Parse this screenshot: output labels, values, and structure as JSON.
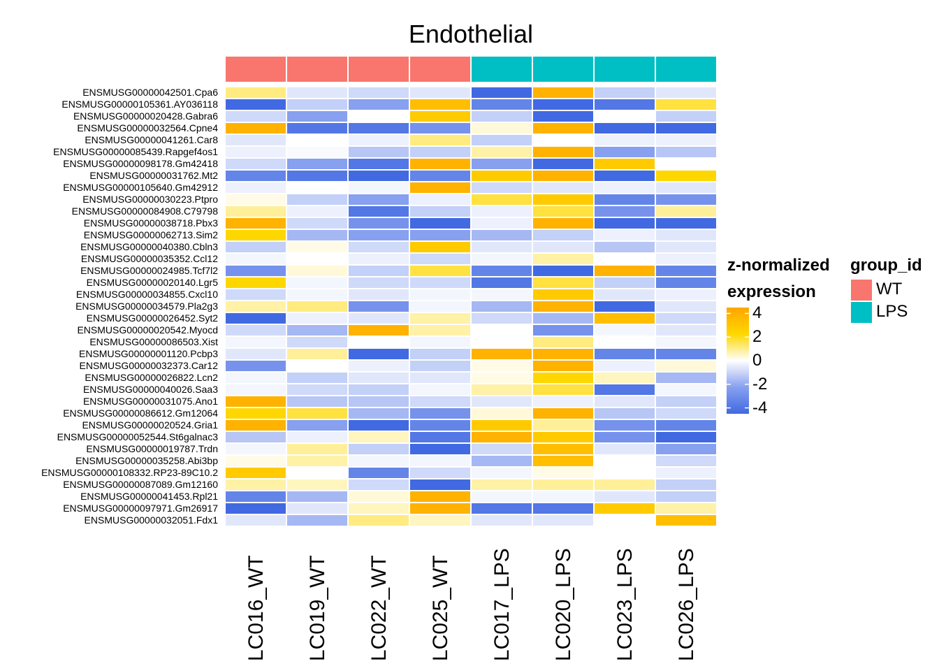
{
  "title": "Endothelial",
  "chart_data": {
    "type": "heatmap",
    "title": "Endothelial",
    "samples": [
      "LC016_WT",
      "LC019_WT",
      "LC022_WT",
      "LC025_WT",
      "LC017_LPS",
      "LC020_LPS",
      "LC023_LPS",
      "LC026_LPS"
    ],
    "sample_groups": [
      "WT",
      "WT",
      "WT",
      "WT",
      "LPS",
      "LPS",
      "LPS",
      "LPS"
    ],
    "genes": [
      "ENSMUSG00000042501.Cpa6",
      "ENSMUSG00000105361.AY036118",
      "ENSMUSG00000020428.Gabra6",
      "ENSMUSG00000032564.Cpne4",
      "ENSMUSG00000041261.Car8",
      "ENSMUSG00000085439.Rapgef4os1",
      "ENSMUSG00000098178.Gm42418",
      "ENSMUSG00000031762.Mt2",
      "ENSMUSG00000105640.Gm42912",
      "ENSMUSG00000030223.Ptpro",
      "ENSMUSG00000084908.C79798",
      "ENSMUSG00000038718.Pbx3",
      "ENSMUSG00000062713.Sim2",
      "ENSMUSG00000040380.Cbln3",
      "ENSMUSG00000035352.Ccl12",
      "ENSMUSG00000024985.Tcf7l2",
      "ENSMUSG00000020140.Lgr5",
      "ENSMUSG00000034855.Cxcl10",
      "ENSMUSG00000034579.Pla2g3",
      "ENSMUSG00000026452.Syt2",
      "ENSMUSG00000020542.Myocd",
      "ENSMUSG00000086503.Xist",
      "ENSMUSG00000001120.Pcbp3",
      "ENSMUSG00000032373.Car12",
      "ENSMUSG00000026822.Lcn2",
      "ENSMUSG00000040026.Saa3",
      "ENSMUSG00000031075.Ano1",
      "ENSMUSG00000086612.Gm12064",
      "ENSMUSG00000020524.Gria1",
      "ENSMUSG00000052544.St6galnac3",
      "ENSMUSG00000019787.Trdn",
      "ENSMUSG00000035258.Abi3bp",
      "ENSMUSG00000108332.RP23-89C10.2",
      "ENSMUSG00000087089.Gm12160",
      "ENSMUSG00000041453.Rpl21",
      "ENSMUSG00000097971.Gm26917",
      "ENSMUSG00000032051.Fdx1"
    ],
    "values": [
      [
        1,
        -0.5,
        -0.8,
        -0.5,
        -4,
        3.5,
        -1,
        -0.5
      ],
      [
        -4,
        -1,
        -2,
        3,
        -3,
        -4,
        -3.5,
        1.5
      ],
      [
        -0.8,
        -2,
        0,
        2.5,
        -1,
        -4,
        0,
        -1
      ],
      [
        3.5,
        -3.5,
        -3.5,
        -2.5,
        0.3,
        3.5,
        -4,
        -4
      ],
      [
        -0.5,
        0,
        -0.3,
        1,
        -1,
        0,
        -0.3,
        -0.3
      ],
      [
        -0.3,
        -0.1,
        -1.2,
        -1,
        0.7,
        3.5,
        -2,
        -1.2
      ],
      [
        -0.8,
        -2,
        -3.5,
        3.5,
        -2,
        -4,
        2.5,
        0
      ],
      [
        -3,
        -3.5,
        -4,
        -3,
        2.5,
        3.5,
        -4,
        2
      ],
      [
        -0.3,
        0,
        -0.2,
        3.5,
        -0.8,
        -0.5,
        -0.3,
        -0.5
      ],
      [
        0.2,
        -1,
        -2,
        -0.3,
        1.5,
        2.5,
        -3,
        -2.5
      ],
      [
        0.8,
        -0.3,
        -3.5,
        -1,
        -0.3,
        1.5,
        -2.5,
        0.8
      ],
      [
        3.5,
        -0.8,
        -2.5,
        -4,
        -0.3,
        3.5,
        -4,
        -4
      ],
      [
        2,
        -1.5,
        -2,
        -2,
        -1.5,
        -1,
        -0.3,
        -0.5
      ],
      [
        -1,
        0.2,
        -0.8,
        2.5,
        -0.5,
        -0.5,
        -1.2,
        -0.5
      ],
      [
        -0.2,
        0,
        -0.3,
        -0.8,
        -0.2,
        0.7,
        0,
        -0.3
      ],
      [
        -2.5,
        0.3,
        -1,
        1.5,
        -3,
        -4,
        3.5,
        -3
      ],
      [
        2,
        -0.2,
        -0.8,
        -0.8,
        -3.5,
        1.5,
        -1,
        -3
      ],
      [
        -0.8,
        -0.2,
        -0.5,
        -0.2,
        -0.2,
        2.5,
        -0.5,
        -0.3
      ],
      [
        0.7,
        1,
        -2.5,
        -0.2,
        -1.5,
        3.5,
        -4,
        -0.5
      ],
      [
        -4,
        -0.3,
        -0.5,
        0.7,
        -0.8,
        -1.5,
        3,
        -0.8
      ],
      [
        -0.8,
        -1.5,
        3.5,
        0.7,
        0,
        -2.5,
        -0.2,
        -0.5
      ],
      [
        -0.2,
        -0.8,
        0,
        -0.2,
        0,
        1,
        0,
        -0.2
      ],
      [
        -0.5,
        0.8,
        -4,
        -1,
        3.5,
        3.5,
        -3,
        -3
      ],
      [
        -2.5,
        0,
        -0.3,
        -1,
        0.2,
        3.5,
        -0.3,
        0.3
      ],
      [
        -0.2,
        -1,
        -0.5,
        -0.5,
        0.2,
        2,
        0.5,
        -1.5
      ],
      [
        -0.2,
        -0.8,
        -1,
        -0.2,
        0.7,
        1.5,
        -3.5,
        -0.2
      ],
      [
        3.5,
        -1.2,
        -1.2,
        -0.8,
        -0.5,
        -0.3,
        -0.5,
        -1
      ],
      [
        2,
        1.5,
        -1.5,
        -2.5,
        0.3,
        3.5,
        -1.2,
        -0.8
      ],
      [
        3.5,
        -2,
        -4,
        -3,
        2.5,
        0.8,
        -2.5,
        -3
      ],
      [
        -1.2,
        -0.3,
        0.5,
        -3.5,
        3.5,
        2.5,
        -2.5,
        -4
      ],
      [
        -0.2,
        0.8,
        -1,
        -4,
        -0.8,
        3,
        -0.5,
        -2
      ],
      [
        0.2,
        0.7,
        -0.2,
        -0.2,
        -1.5,
        3,
        0,
        -0.8
      ],
      [
        2.5,
        0,
        -3,
        -0.8,
        -0.2,
        0.2,
        0,
        -0.3
      ],
      [
        0.7,
        0.5,
        -0.8,
        -4,
        0.7,
        0.8,
        0.8,
        -1
      ],
      [
        -3,
        -1.5,
        0.3,
        3.5,
        -0.2,
        -0.2,
        -0.5,
        -1
      ],
      [
        -4,
        -0.5,
        0.5,
        3.5,
        -3.5,
        -3.5,
        2.5,
        0.7
      ],
      [
        -0.5,
        -1.5,
        1,
        0.5,
        -0.5,
        -0.5,
        0,
        3
      ]
    ],
    "color_scale": {
      "stops": [
        -4,
        -2,
        0,
        2,
        4
      ],
      "colors": [
        "#4169e1",
        "#87a0ef",
        "#ffffff",
        "#ffd700",
        "#ffa500"
      ]
    },
    "legend": {
      "title_line1": "z-normalized",
      "title_line2": "expression",
      "ticks": [
        "4",
        "2",
        "0",
        "-2",
        "-4"
      ]
    },
    "group_legend": {
      "title": "group_id",
      "items": [
        {
          "label": "WT",
          "color": "#f8766d"
        },
        {
          "label": "LPS",
          "color": "#00bfc4"
        }
      ]
    }
  }
}
